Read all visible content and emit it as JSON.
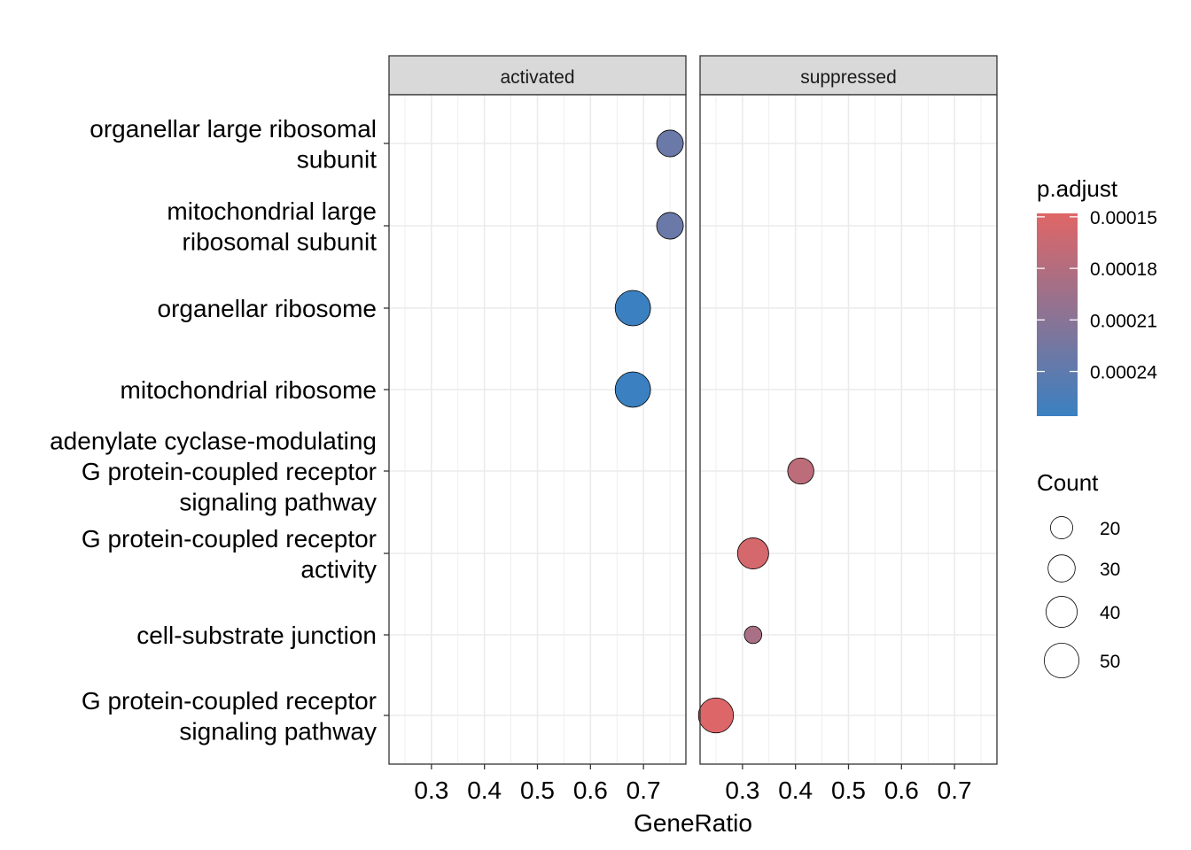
{
  "chart_data": {
    "type": "scatter",
    "xlabel": "GeneRatio",
    "facets": [
      "activated",
      "suppressed"
    ],
    "xlim": [
      0.22,
      0.78
    ],
    "x_ticks": [
      0.3,
      0.4,
      0.5,
      0.6,
      0.7
    ],
    "x_tick_labels": [
      "0.3",
      "0.4",
      "0.5",
      "0.6",
      "0.7"
    ],
    "categories": [
      [
        "organellar large ribosomal",
        "subunit"
      ],
      [
        "mitochondrial large",
        "ribosomal subunit"
      ],
      [
        "organellar ribosome"
      ],
      [
        "mitochondrial ribosome"
      ],
      [
        "adenylate cyclase-modulating",
        "G protein-coupled receptor",
        "signaling pathway"
      ],
      [
        "G protein-coupled receptor",
        "activity"
      ],
      [
        "cell-substrate junction"
      ],
      [
        "G protein-coupled receptor",
        "signaling pathway"
      ]
    ],
    "points": [
      {
        "facet": 0,
        "category": 0,
        "x": 0.75,
        "count": 29,
        "p_adjust": 0.000232
      },
      {
        "facet": 0,
        "category": 1,
        "x": 0.75,
        "count": 29,
        "p_adjust": 0.000232
      },
      {
        "facet": 0,
        "category": 2,
        "x": 0.68,
        "count": 52,
        "p_adjust": 0.000265
      },
      {
        "facet": 0,
        "category": 3,
        "x": 0.68,
        "count": 52,
        "p_adjust": 0.000265
      },
      {
        "facet": 1,
        "category": 4,
        "x": 0.41,
        "count": 28,
        "p_adjust": 0.000173
      },
      {
        "facet": 1,
        "category": 5,
        "x": 0.32,
        "count": 40,
        "p_adjust": 0.000156
      },
      {
        "facet": 1,
        "category": 6,
        "x": 0.32,
        "count": 12,
        "p_adjust": 0.000188
      },
      {
        "facet": 1,
        "category": 7,
        "x": 0.25,
        "count": 51,
        "p_adjust": 0.00015
      }
    ],
    "color_scale": {
      "title": "p.adjust",
      "low_color": "#E06666",
      "high_color": "#3A80C1",
      "range": [
        0.000148,
        0.000266
      ],
      "breaks": [
        0.00015,
        0.00018,
        0.00021,
        0.00024
      ],
      "labels": [
        "0.00015",
        "0.00018",
        "0.00021",
        "0.00024"
      ]
    },
    "size_scale": {
      "title": "Count",
      "breaks": [
        20,
        30,
        40,
        50
      ],
      "labels": [
        "20",
        "30",
        "40",
        "50"
      ]
    },
    "grid": true,
    "legend_position": "right"
  }
}
